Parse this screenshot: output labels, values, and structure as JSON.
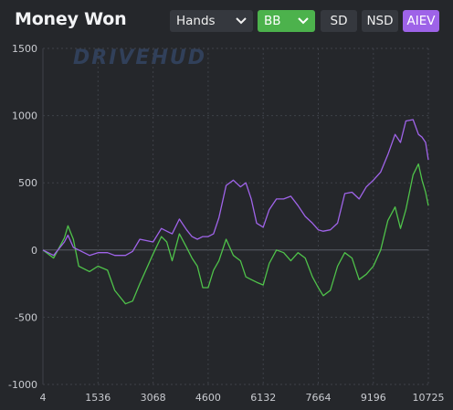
{
  "header": {
    "title": "Money Won",
    "x_select": "Hands",
    "unit_select": "BB",
    "buttons": [
      "SD",
      "NSD",
      "AIEV"
    ],
    "active_button": "AIEV"
  },
  "watermark": "DRIVEHUD",
  "colors": {
    "background": "#25272b",
    "grid": "#3e4148",
    "zero_line": "#5a5e66",
    "green_button": "#4cb24c",
    "purple_button": "#9e63e8",
    "series_green": "#4fc24a",
    "series_purple": "#a064ea"
  },
  "chart_data": {
    "type": "line",
    "xlabel": "",
    "ylabel": "",
    "xlim": [
      4,
      10725
    ],
    "ylim": [
      -1000,
      1500
    ],
    "x_ticks": [
      "4",
      "1536",
      "3068",
      "4600",
      "6132",
      "7664",
      "9196",
      "10725"
    ],
    "y_ticks": [
      "1500",
      "1000",
      "500",
      "0",
      "-500",
      "-1000"
    ],
    "grid": true,
    "series": [
      {
        "color": "#4fc24a",
        "points": [
          [
            4,
            0
          ],
          [
            300,
            -60
          ],
          [
            600,
            90
          ],
          [
            700,
            180
          ],
          [
            850,
            80
          ],
          [
            1000,
            -120
          ],
          [
            1300,
            -160
          ],
          [
            1536,
            -120
          ],
          [
            1800,
            -150
          ],
          [
            2000,
            -300
          ],
          [
            2300,
            -400
          ],
          [
            2500,
            -380
          ],
          [
            2700,
            -250
          ],
          [
            3068,
            -30
          ],
          [
            3300,
            100
          ],
          [
            3450,
            60
          ],
          [
            3600,
            -80
          ],
          [
            3800,
            120
          ],
          [
            4000,
            20
          ],
          [
            4150,
            -60
          ],
          [
            4300,
            -120
          ],
          [
            4450,
            -280
          ],
          [
            4600,
            -280
          ],
          [
            4750,
            -150
          ],
          [
            4900,
            -80
          ],
          [
            5100,
            80
          ],
          [
            5300,
            -40
          ],
          [
            5500,
            -80
          ],
          [
            5650,
            -200
          ],
          [
            5800,
            -220
          ],
          [
            5950,
            -240
          ],
          [
            6132,
            -260
          ],
          [
            6300,
            -100
          ],
          [
            6500,
            0
          ],
          [
            6700,
            -20
          ],
          [
            6900,
            -80
          ],
          [
            7100,
            -20
          ],
          [
            7300,
            -60
          ],
          [
            7500,
            -200
          ],
          [
            7664,
            -280
          ],
          [
            7800,
            -340
          ],
          [
            8000,
            -300
          ],
          [
            8200,
            -120
          ],
          [
            8400,
            -20
          ],
          [
            8600,
            -60
          ],
          [
            8800,
            -220
          ],
          [
            9000,
            -180
          ],
          [
            9196,
            -120
          ],
          [
            9400,
            0
          ],
          [
            9600,
            220
          ],
          [
            9800,
            320
          ],
          [
            9950,
            160
          ],
          [
            10100,
            300
          ],
          [
            10300,
            560
          ],
          [
            10450,
            640
          ],
          [
            10550,
            520
          ],
          [
            10650,
            430
          ],
          [
            10725,
            330
          ]
        ]
      },
      {
        "color": "#a064ea",
        "points": [
          [
            4,
            0
          ],
          [
            300,
            -40
          ],
          [
            600,
            60
          ],
          [
            700,
            110
          ],
          [
            850,
            20
          ],
          [
            1000,
            0
          ],
          [
            1300,
            -40
          ],
          [
            1536,
            -20
          ],
          [
            1800,
            -20
          ],
          [
            2000,
            -40
          ],
          [
            2300,
            -40
          ],
          [
            2500,
            -10
          ],
          [
            2700,
            80
          ],
          [
            3068,
            60
          ],
          [
            3300,
            160
          ],
          [
            3450,
            140
          ],
          [
            3600,
            120
          ],
          [
            3800,
            230
          ],
          [
            4000,
            150
          ],
          [
            4150,
            100
          ],
          [
            4300,
            80
          ],
          [
            4450,
            100
          ],
          [
            4600,
            100
          ],
          [
            4750,
            120
          ],
          [
            4900,
            240
          ],
          [
            5100,
            480
          ],
          [
            5300,
            520
          ],
          [
            5500,
            470
          ],
          [
            5650,
            500
          ],
          [
            5800,
            380
          ],
          [
            5950,
            200
          ],
          [
            6132,
            170
          ],
          [
            6300,
            300
          ],
          [
            6500,
            380
          ],
          [
            6700,
            380
          ],
          [
            6900,
            400
          ],
          [
            7100,
            330
          ],
          [
            7300,
            250
          ],
          [
            7500,
            200
          ],
          [
            7664,
            150
          ],
          [
            7800,
            140
          ],
          [
            8000,
            150
          ],
          [
            8200,
            200
          ],
          [
            8400,
            420
          ],
          [
            8600,
            430
          ],
          [
            8800,
            380
          ],
          [
            9000,
            470
          ],
          [
            9196,
            520
          ],
          [
            9400,
            580
          ],
          [
            9600,
            710
          ],
          [
            9800,
            860
          ],
          [
            9950,
            800
          ],
          [
            10100,
            960
          ],
          [
            10300,
            970
          ],
          [
            10450,
            860
          ],
          [
            10550,
            840
          ],
          [
            10650,
            800
          ],
          [
            10725,
            670
          ]
        ]
      }
    ]
  }
}
